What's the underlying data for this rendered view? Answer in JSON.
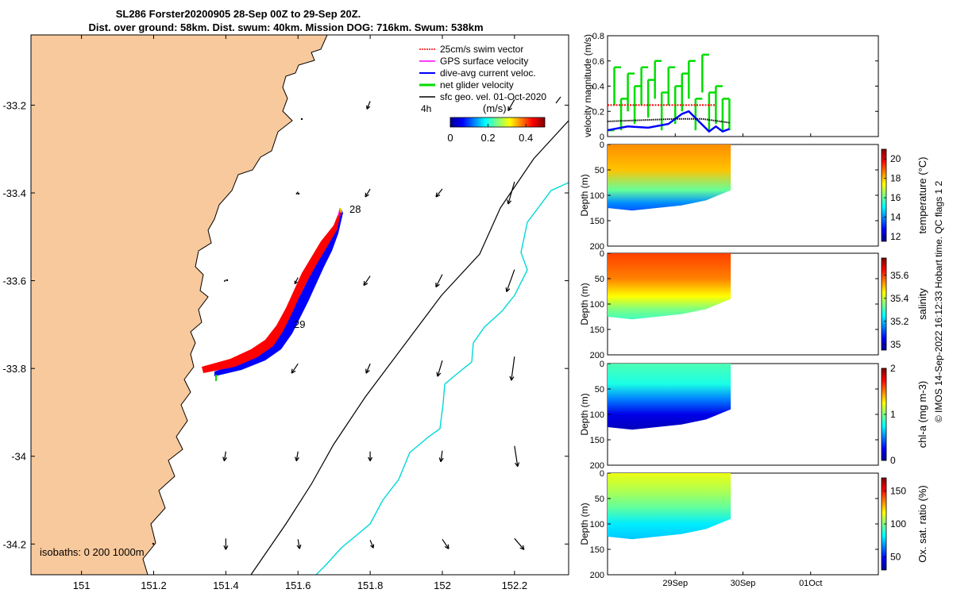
{
  "title": {
    "line1": "SL286 Forster20200905 28-Sep 00Z to 29-Sep 20Z.",
    "line2": "Dist. over ground: 58km. Dist. swum: 40km. Mission DOG: 716km. Swum: 538km"
  },
  "credit": "© IMOS 14-Sep-2022 16:12:33 Hobart time. QC flags 1  2",
  "colors": {
    "land": "#f8c99c",
    "swim_vector": "#ff0000",
    "gps_velocity": "#ff00ff",
    "dive_avg_current": "#0000ff",
    "net_glider_velocity": "#00dd00",
    "sfc_geo_vel": "#000000",
    "isobath_200": "#000000",
    "isobath_1000": "#00d8d8"
  },
  "map": {
    "legend": [
      {
        "label": "25cm/s swim vector",
        "color": "#ff0000"
      },
      {
        "label": "GPS surface velocity",
        "color": "#ff00ff"
      },
      {
        "label": "dive-avg current veloc.",
        "color": "#0000ff"
      },
      {
        "label": "net glider velocity",
        "color": "#00dd00"
      },
      {
        "label": "sfc geo. vel. 01-Oct-2020",
        "color": "#000000"
      }
    ],
    "colorbar": {
      "label": "(m/s)",
      "ticks": [
        "0",
        "0.2",
        "0.4"
      ],
      "range": [
        0,
        0.5
      ],
      "colormap": "jet"
    },
    "scale_label": "4h",
    "isobaths_label": "isobaths: 0   200  1000m",
    "day_labels": [
      {
        "text": "28",
        "lon": 151.72,
        "lat": -33.42
      },
      {
        "text": "29",
        "lon": 151.58,
        "lat": -33.72
      }
    ],
    "lon_ticks": [
      "151",
      "151.2",
      "151.4",
      "151.6",
      "151.8",
      "152",
      "152.2"
    ],
    "lat_ticks": [
      "-33.2",
      "-33.4",
      "-33.6",
      "-33.8",
      "-34",
      "-34.2"
    ],
    "xlim": [
      150.86,
      152.35
    ],
    "ylim": [
      -34.27,
      -33.04
    ]
  },
  "chart_data": [
    {
      "type": "line",
      "ylabel": "velocity magnitude (m/s)",
      "ylim": [
        0,
        0.8
      ],
      "yticks": [
        "0",
        "0.2",
        "0.4",
        "0.6",
        "0.8"
      ],
      "x_range_days": [
        "28-Sep",
        "02-Oct"
      ],
      "series": [
        {
          "name": "net glider velocity",
          "color": "#00dd00",
          "x": [
            "28.0",
            "28.1",
            "28.2",
            "28.3",
            "28.4",
            "28.5",
            "28.6",
            "28.7",
            "28.8",
            "28.9",
            "29.0",
            "29.1",
            "29.2",
            "29.3",
            "29.4",
            "29.5",
            "29.6",
            "29.7",
            "29.8"
          ],
          "values": [
            0.05,
            0.55,
            0.3,
            0.5,
            0.4,
            0.55,
            0.45,
            0.6,
            0.35,
            0.55,
            0.4,
            0.5,
            0.6,
            0.3,
            0.65,
            0.35,
            0.4,
            0.3,
            0.3
          ]
        },
        {
          "name": "25cm/s swim vector",
          "color": "#ff0000",
          "x": [
            "28.0",
            "29.6"
          ],
          "values": [
            0.25,
            0.25
          ]
        },
        {
          "name": "dive-avg current veloc.",
          "color": "#0000ff",
          "x": [
            "28.0",
            "28.3",
            "28.6",
            "28.9",
            "29.1",
            "29.2",
            "29.35",
            "29.5",
            "29.6",
            "29.7",
            "29.8"
          ],
          "values": [
            0.05,
            0.08,
            0.07,
            0.1,
            0.18,
            0.2,
            0.12,
            0.04,
            0.08,
            0.04,
            0.06
          ]
        },
        {
          "name": "sfc geo. vel. 01-Oct-2020",
          "color": "#000000",
          "x": [
            "28.0",
            "28.5",
            "29.0",
            "29.4",
            "29.8"
          ],
          "values": [
            0.12,
            0.13,
            0.14,
            0.14,
            0.11
          ]
        }
      ]
    },
    {
      "type": "heatmap",
      "colorbar_label": "temperature (°C)",
      "colorbar_range": [
        11.5,
        21
      ],
      "colorbar_ticks": [
        "12",
        "14",
        "16",
        "18",
        "20"
      ],
      "ylabel": "Depth (m)",
      "ylim": [
        200,
        0
      ],
      "yticks": [
        "0",
        "50",
        "100",
        "150",
        "200"
      ],
      "layers": [
        {
          "depth": 0,
          "value": 18.5
        },
        {
          "depth": 50,
          "value": 18
        },
        {
          "depth": 90,
          "value": 16
        },
        {
          "depth": 115,
          "value": 14
        },
        {
          "depth": 130,
          "value": 13.5
        }
      ],
      "max_depth": [
        125,
        130,
        125,
        120,
        110,
        90
      ]
    },
    {
      "type": "heatmap",
      "colorbar_label": "salinity",
      "colorbar_range": [
        34.95,
        35.75
      ],
      "colorbar_ticks": [
        "35",
        "35.2",
        "35.4",
        "35.6"
      ],
      "ylabel": "Depth (m)",
      "ylim": [
        200,
        0
      ],
      "yticks": [
        "0",
        "50",
        "100",
        "150",
        "200"
      ],
      "layers": [
        {
          "depth": 0,
          "value": 35.6
        },
        {
          "depth": 50,
          "value": 35.55
        },
        {
          "depth": 85,
          "value": 35.45
        },
        {
          "depth": 110,
          "value": 35.35
        },
        {
          "depth": 130,
          "value": 35.3
        }
      ],
      "max_depth": [
        125,
        130,
        125,
        120,
        110,
        90
      ]
    },
    {
      "type": "heatmap",
      "colorbar_label": "chl-a (mg m-3)",
      "colorbar_range": [
        0,
        2
      ],
      "colorbar_ticks": [
        "0",
        "1",
        "2"
      ],
      "ylabel": "Depth (m)",
      "ylim": [
        200,
        0
      ],
      "yticks": [
        "0",
        "50",
        "100",
        "150",
        "200"
      ],
      "layers": [
        {
          "depth": 0,
          "value": 0.9
        },
        {
          "depth": 40,
          "value": 0.8
        },
        {
          "depth": 70,
          "value": 0.5
        },
        {
          "depth": 100,
          "value": 0.2
        },
        {
          "depth": 130,
          "value": 0.1
        }
      ],
      "max_depth": [
        125,
        130,
        125,
        120,
        110,
        90
      ]
    },
    {
      "type": "heatmap",
      "colorbar_label": "Ox. sat. ratio (%)",
      "colorbar_range": [
        30,
        170
      ],
      "colorbar_ticks": [
        "50",
        "100",
        "150"
      ],
      "ylabel": "Depth (m)",
      "ylim": [
        200,
        0
      ],
      "yticks": [
        "0",
        "50",
        "100",
        "150",
        "200"
      ],
      "layers": [
        {
          "depth": 0,
          "value": 115
        },
        {
          "depth": 40,
          "value": 105
        },
        {
          "depth": 70,
          "value": 95
        },
        {
          "depth": 100,
          "value": 80
        },
        {
          "depth": 130,
          "value": 75
        }
      ],
      "max_depth": [
        125,
        130,
        125,
        120,
        110,
        90
      ]
    }
  ],
  "time_axis": {
    "ticks": [
      "29Sep",
      "30Sep",
      "01Oct"
    ]
  }
}
